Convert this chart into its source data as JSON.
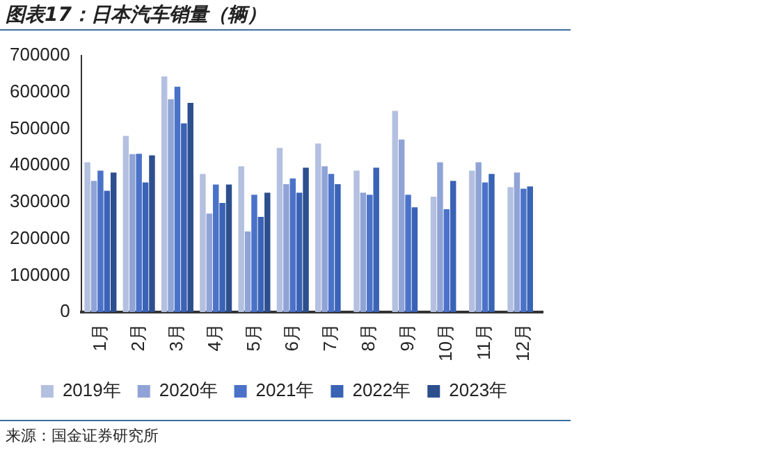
{
  "chart_data": {
    "type": "bar",
    "title": "图表17：日本汽车销量（辆）",
    "categories": [
      "1月",
      "2月",
      "3月",
      "4月",
      "5月",
      "6月",
      "7月",
      "8月",
      "9月",
      "10月",
      "11月",
      "12月"
    ],
    "series": [
      {
        "name": "2019年",
        "color": "#b4c0e0",
        "values": [
          409000,
          481000,
          643000,
          377000,
          398000,
          448000,
          460000,
          386000,
          549000,
          315000,
          386000,
          341000
        ]
      },
      {
        "name": "2020年",
        "color": "#8fa3d6",
        "values": [
          358000,
          431000,
          581000,
          269000,
          220000,
          349000,
          398000,
          326000,
          471000,
          409000,
          409000,
          381000
        ]
      },
      {
        "name": "2021年",
        "color": "#4a72c8",
        "values": [
          386000,
          432000,
          615000,
          348000,
          320000,
          365000,
          377000,
          320000,
          320000,
          281000,
          354000,
          337000
        ]
      },
      {
        "name": "2022年",
        "color": "#3a63b5",
        "values": [
          331000,
          354000,
          515000,
          298000,
          260000,
          326000,
          349000,
          394000,
          286000,
          358000,
          377000,
          343000
        ]
      },
      {
        "name": "2023年",
        "color": "#2d4f8e",
        "values": [
          381000,
          428000,
          571000,
          348000,
          326000,
          394000,
          null,
          null,
          null,
          null,
          null,
          null
        ]
      }
    ],
    "ylim": [
      0,
      700000
    ],
    "yticks": [
      0,
      100000,
      200000,
      300000,
      400000,
      500000,
      600000,
      700000
    ],
    "grid": false,
    "legend": "bottom",
    "annotations": [
      "来源：国金证券研究所"
    ]
  }
}
